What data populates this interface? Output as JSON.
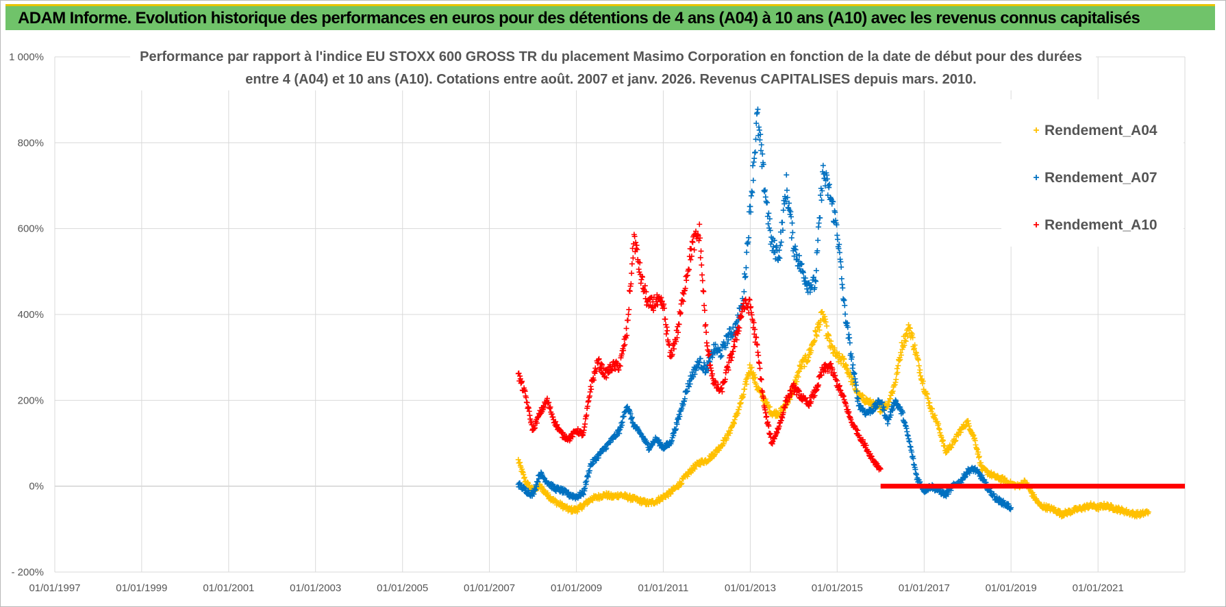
{
  "header": {
    "banner_title": "ADAM Informe. Evolution historique des performances en euros pour des détentions de 4 ans (A04) à 10 ans (A10) avec les revenus connus capitalisés"
  },
  "chart_data": {
    "type": "scatter",
    "title_lines": [
      "Performance par rapport à l'indice EU STOXX 600 GROSS TR  du placement Masimo Corporation en fonction de la date de début pour des durées",
      "entre 4 (A04) et 10 ans (A10).  Cotations entre août. 2007 et janv. 2026. Revenus CAPITALISES  depuis mars. 2010."
    ],
    "x_range": [
      "1997-01-01",
      "2023-01-01"
    ],
    "x_ticks": [
      "01/01/1997",
      "01/01/1999",
      "01/01/2001",
      "01/01/2003",
      "01/01/2005",
      "01/01/2007",
      "01/01/2009",
      "01/01/2011",
      "01/01/2013",
      "01/01/2015",
      "01/01/2017",
      "01/01/2019",
      "01/01/2021"
    ],
    "y_range": [
      -200,
      1000
    ],
    "y_ticks": [
      {
        "value": 1000,
        "label": "1 000%"
      },
      {
        "value": 800,
        "label": "800%"
      },
      {
        "value": 600,
        "label": "600%"
      },
      {
        "value": 400,
        "label": "400%"
      },
      {
        "value": 200,
        "label": "200%"
      },
      {
        "value": 0,
        "label": "0%"
      },
      {
        "value": -200,
        "label": "- 200%"
      }
    ],
    "grid": true,
    "legend_position": "top-right",
    "marker": "+",
    "series": [
      {
        "name": "Rendement_A04",
        "color": "#ffc000",
        "points": [
          [
            "2007-09-01",
            60
          ],
          [
            "2007-11-01",
            10
          ],
          [
            "2008-01-01",
            -10
          ],
          [
            "2008-03-01",
            0
          ],
          [
            "2008-05-01",
            -20
          ],
          [
            "2008-07-01",
            -35
          ],
          [
            "2008-09-01",
            -45
          ],
          [
            "2008-11-01",
            -55
          ],
          [
            "2009-01-01",
            -55
          ],
          [
            "2009-03-01",
            -45
          ],
          [
            "2009-05-01",
            -30
          ],
          [
            "2009-07-01",
            -25
          ],
          [
            "2009-09-01",
            -20
          ],
          [
            "2009-11-01",
            -25
          ],
          [
            "2010-01-01",
            -20
          ],
          [
            "2010-03-01",
            -25
          ],
          [
            "2010-05-01",
            -30
          ],
          [
            "2010-07-01",
            -35
          ],
          [
            "2010-09-01",
            -40
          ],
          [
            "2010-11-01",
            -35
          ],
          [
            "2011-01-01",
            -25
          ],
          [
            "2011-03-01",
            -15
          ],
          [
            "2011-05-01",
            0
          ],
          [
            "2011-07-01",
            20
          ],
          [
            "2011-09-01",
            40
          ],
          [
            "2011-11-01",
            55
          ],
          [
            "2012-01-01",
            60
          ],
          [
            "2012-03-01",
            75
          ],
          [
            "2012-05-01",
            95
          ],
          [
            "2012-07-01",
            120
          ],
          [
            "2012-09-01",
            160
          ],
          [
            "2012-11-01",
            210
          ],
          [
            "2013-01-01",
            280
          ],
          [
            "2013-03-01",
            230
          ],
          [
            "2013-05-01",
            200
          ],
          [
            "2013-07-01",
            170
          ],
          [
            "2013-09-01",
            170
          ],
          [
            "2013-11-01",
            190
          ],
          [
            "2014-01-01",
            230
          ],
          [
            "2014-03-01",
            280
          ],
          [
            "2014-05-01",
            300
          ],
          [
            "2014-07-01",
            350
          ],
          [
            "2014-09-01",
            400
          ],
          [
            "2014-11-01",
            330
          ],
          [
            "2015-01-01",
            300
          ],
          [
            "2015-03-01",
            290
          ],
          [
            "2015-05-01",
            250
          ],
          [
            "2015-07-01",
            210
          ],
          [
            "2015-09-01",
            200
          ],
          [
            "2015-11-01",
            190
          ],
          [
            "2016-01-01",
            180
          ],
          [
            "2016-03-01",
            190
          ],
          [
            "2016-05-01",
            240
          ],
          [
            "2016-07-01",
            330
          ],
          [
            "2016-09-01",
            370
          ],
          [
            "2016-11-01",
            300
          ],
          [
            "2017-01-01",
            230
          ],
          [
            "2017-03-01",
            180
          ],
          [
            "2017-05-01",
            140
          ],
          [
            "2017-07-01",
            80
          ],
          [
            "2017-09-01",
            100
          ],
          [
            "2017-11-01",
            130
          ],
          [
            "2018-01-01",
            150
          ],
          [
            "2018-03-01",
            110
          ],
          [
            "2018-05-01",
            40
          ],
          [
            "2018-07-01",
            30
          ],
          [
            "2018-09-01",
            20
          ],
          [
            "2018-11-01",
            15
          ],
          [
            "2019-01-01",
            5
          ],
          [
            "2019-03-01",
            0
          ],
          [
            "2019-05-01",
            10
          ],
          [
            "2019-07-01",
            -20
          ],
          [
            "2019-09-01",
            -45
          ],
          [
            "2019-11-01",
            -50
          ],
          [
            "2020-01-01",
            -55
          ],
          [
            "2020-03-01",
            -65
          ],
          [
            "2020-05-01",
            -60
          ],
          [
            "2020-07-01",
            -55
          ],
          [
            "2020-09-01",
            -50
          ],
          [
            "2020-11-01",
            -45
          ],
          [
            "2021-01-01",
            -50
          ],
          [
            "2021-03-01",
            -45
          ],
          [
            "2021-05-01",
            -50
          ],
          [
            "2021-07-01",
            -55
          ],
          [
            "2021-09-01",
            -60
          ],
          [
            "2021-11-01",
            -65
          ],
          [
            "2022-01-01",
            -65
          ],
          [
            "2022-03-01",
            -60
          ]
        ]
      },
      {
        "name": "Rendement_A07",
        "color": "#0070c0",
        "points": [
          [
            "2007-09-01",
            5
          ],
          [
            "2007-11-01",
            -10
          ],
          [
            "2008-01-01",
            -20
          ],
          [
            "2008-03-01",
            30
          ],
          [
            "2008-05-01",
            10
          ],
          [
            "2008-07-01",
            -5
          ],
          [
            "2008-09-01",
            -10
          ],
          [
            "2008-11-01",
            -20
          ],
          [
            "2009-01-01",
            -25
          ],
          [
            "2009-03-01",
            -15
          ],
          [
            "2009-05-01",
            50
          ],
          [
            "2009-07-01",
            70
          ],
          [
            "2009-09-01",
            90
          ],
          [
            "2009-11-01",
            110
          ],
          [
            "2010-01-01",
            130
          ],
          [
            "2010-03-01",
            190
          ],
          [
            "2010-05-01",
            140
          ],
          [
            "2010-07-01",
            120
          ],
          [
            "2010-09-01",
            90
          ],
          [
            "2010-11-01",
            110
          ],
          [
            "2011-01-01",
            90
          ],
          [
            "2011-03-01",
            100
          ],
          [
            "2011-05-01",
            150
          ],
          [
            "2011-07-01",
            210
          ],
          [
            "2011-09-01",
            260
          ],
          [
            "2011-11-01",
            290
          ],
          [
            "2012-01-01",
            270
          ],
          [
            "2012-03-01",
            320
          ],
          [
            "2012-05-01",
            310
          ],
          [
            "2012-07-01",
            350
          ],
          [
            "2012-09-01",
            370
          ],
          [
            "2012-11-01",
            430
          ],
          [
            "2013-01-01",
            650
          ],
          [
            "2013-03-01",
            860
          ],
          [
            "2013-05-01",
            700
          ],
          [
            "2013-07-01",
            560
          ],
          [
            "2013-09-01",
            540
          ],
          [
            "2013-11-01",
            700
          ],
          [
            "2014-01-01",
            560
          ],
          [
            "2014-03-01",
            510
          ],
          [
            "2014-05-01",
            470
          ],
          [
            "2014-07-01",
            470
          ],
          [
            "2014-09-01",
            730
          ],
          [
            "2014-11-01",
            680
          ],
          [
            "2015-01-01",
            600
          ],
          [
            "2015-03-01",
            420
          ],
          [
            "2015-05-01",
            300
          ],
          [
            "2015-07-01",
            190
          ],
          [
            "2015-09-01",
            170
          ],
          [
            "2015-11-01",
            180
          ],
          [
            "2016-01-01",
            200
          ],
          [
            "2016-03-01",
            150
          ],
          [
            "2016-05-01",
            200
          ],
          [
            "2016-07-01",
            170
          ],
          [
            "2016-09-01",
            100
          ],
          [
            "2016-11-01",
            20
          ],
          [
            "2017-01-01",
            -10
          ],
          [
            "2017-03-01",
            0
          ],
          [
            "2017-05-01",
            -10
          ],
          [
            "2017-07-01",
            -20
          ],
          [
            "2017-09-01",
            0
          ],
          [
            "2017-11-01",
            10
          ],
          [
            "2018-01-01",
            35
          ],
          [
            "2018-03-01",
            40
          ],
          [
            "2018-05-01",
            20
          ],
          [
            "2018-07-01",
            -10
          ],
          [
            "2018-09-01",
            -30
          ],
          [
            "2018-11-01",
            -40
          ],
          [
            "2019-01-01",
            -50
          ]
        ]
      },
      {
        "name": "Rendement_A10",
        "color": "#ff0000",
        "points": [
          [
            "2007-09-01",
            260
          ],
          [
            "2007-11-01",
            210
          ],
          [
            "2008-01-01",
            130
          ],
          [
            "2008-03-01",
            170
          ],
          [
            "2008-05-01",
            200
          ],
          [
            "2008-07-01",
            150
          ],
          [
            "2008-09-01",
            120
          ],
          [
            "2008-11-01",
            110
          ],
          [
            "2009-01-01",
            130
          ],
          [
            "2009-03-01",
            120
          ],
          [
            "2009-05-01",
            230
          ],
          [
            "2009-07-01",
            290
          ],
          [
            "2009-09-01",
            260
          ],
          [
            "2009-11-01",
            280
          ],
          [
            "2010-01-01",
            280
          ],
          [
            "2010-03-01",
            360
          ],
          [
            "2010-05-01",
            580
          ],
          [
            "2010-07-01",
            480
          ],
          [
            "2010-09-01",
            420
          ],
          [
            "2010-11-01",
            430
          ],
          [
            "2011-01-01",
            420
          ],
          [
            "2011-03-01",
            300
          ],
          [
            "2011-05-01",
            360
          ],
          [
            "2011-07-01",
            470
          ],
          [
            "2011-09-01",
            560
          ],
          [
            "2011-11-01",
            590
          ],
          [
            "2012-01-01",
            330
          ],
          [
            "2012-03-01",
            240
          ],
          [
            "2012-05-01",
            220
          ],
          [
            "2012-07-01",
            280
          ],
          [
            "2012-09-01",
            340
          ],
          [
            "2012-11-01",
            420
          ],
          [
            "2013-01-01",
            420
          ],
          [
            "2013-03-01",
            320
          ],
          [
            "2013-05-01",
            180
          ],
          [
            "2013-07-01",
            100
          ],
          [
            "2013-09-01",
            140
          ],
          [
            "2013-11-01",
            200
          ],
          [
            "2014-01-01",
            230
          ],
          [
            "2014-03-01",
            210
          ],
          [
            "2014-05-01",
            190
          ],
          [
            "2014-07-01",
            220
          ],
          [
            "2014-09-01",
            270
          ],
          [
            "2014-11-01",
            280
          ],
          [
            "2015-01-01",
            240
          ],
          [
            "2015-03-01",
            200
          ],
          [
            "2015-05-01",
            150
          ],
          [
            "2015-07-01",
            120
          ],
          [
            "2015-09-01",
            90
          ],
          [
            "2015-11-01",
            60
          ],
          [
            "2016-01-01",
            40
          ]
        ],
        "flat_segment": {
          "from": "2016-01-01",
          "to": "2023-01-01",
          "value": 0
        }
      }
    ]
  }
}
